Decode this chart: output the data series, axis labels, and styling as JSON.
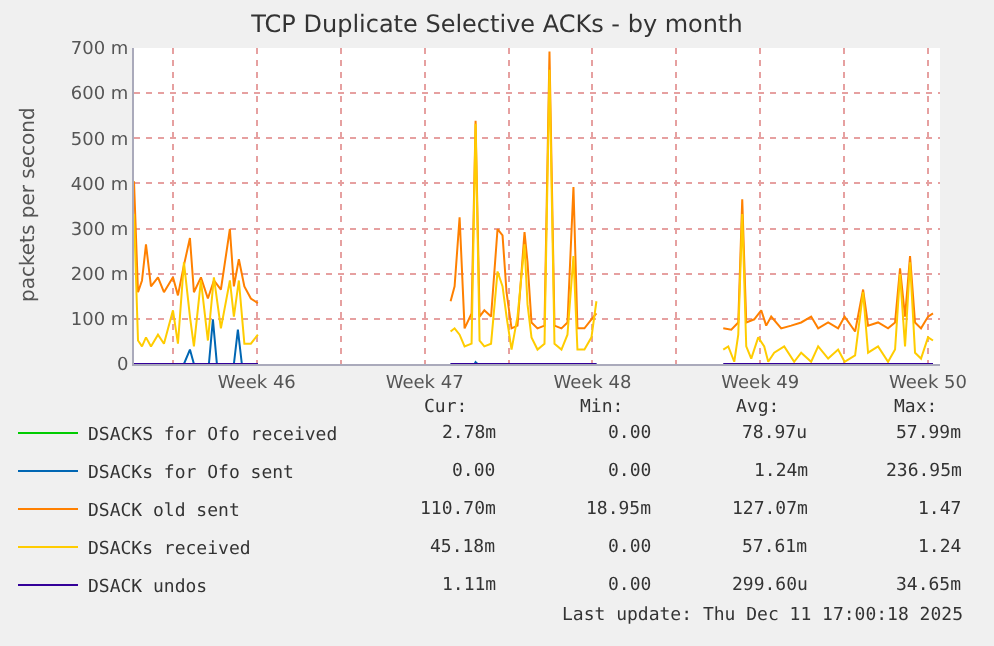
{
  "chart_data": {
    "type": "line",
    "title": "TCP Duplicate Selective ACKs - by month",
    "ylabel": "packets per second",
    "xlim": [
      "2025-11-08T09:00",
      "2025-12-12T00:00"
    ],
    "ylim": [
      0,
      700
    ],
    "xticks": [
      {
        "value": "2025-11-10",
        "label": null
      },
      {
        "value": "2025-11-13T12:00",
        "label": "Week 46"
      },
      {
        "value": "2025-11-17",
        "label": null
      },
      {
        "value": "2025-11-20T12:00",
        "label": "Week 47"
      },
      {
        "value": "2025-11-24",
        "label": null
      },
      {
        "value": "2025-11-27T12:00",
        "label": "Week 48"
      },
      {
        "value": "2025-12-01",
        "label": null
      },
      {
        "value": "2025-12-04T12:00",
        "label": "Week 49"
      },
      {
        "value": "2025-12-08",
        "label": null
      },
      {
        "value": "2025-12-11T12:00",
        "label": "Week 50"
      }
    ],
    "yticks": [
      0,
      {
        "value": 100,
        "label": "100 m"
      },
      {
        "value": 200,
        "label": "200 m"
      },
      {
        "value": 300,
        "label": "300 m"
      },
      {
        "value": 400,
        "label": "400 m"
      },
      {
        "value": 500,
        "label": "500 m"
      },
      {
        "value": 600,
        "label": "600 m"
      },
      {
        "value": 700,
        "label": "700 m"
      }
    ],
    "grid": true,
    "legend": "bottom left",
    "marker": "none",
    "line_style": "solid",
    "series": [
      {
        "name": "DSACKS for Ofo received",
        "color": "#00cc00"
      },
      {
        "name": "DSACKs for Ofo sent",
        "color": "#0066b3",
        "x": [
          "2025-11-08T09:00",
          "2025-11-10T11:00",
          "2025-11-10T17:00",
          "2025-11-10T21:00",
          "2025-11-11T12:00",
          "2025-11-11T16:00",
          "2025-11-11T20:00",
          "2025-11-12T13:00",
          "2025-11-12T17:00",
          "2025-11-12T21:00",
          "2025-11-13T13:00",
          "2025-11-17T00:00",
          "2025-11-21T14:00",
          "2025-11-22T14:00",
          "2025-11-22T15:00",
          "2025-11-22T17:00",
          "2025-11-27T16:00"
        ],
        "values": [
          0,
          0,
          32,
          0,
          0,
          99,
          0,
          0,
          76,
          0,
          0,
          null,
          0,
          0,
          4,
          0,
          0
        ]
      },
      {
        "name": "DSACK old sent",
        "color": "#ff8000",
        "x": [
          "2025-11-08T09:00",
          "2025-11-08T13:00",
          "2025-11-08T17:00",
          "2025-11-08T21:00",
          "2025-11-09T02:00",
          "2025-11-09T09:00",
          "2025-11-09T15:00",
          "2025-11-10T00:00",
          "2025-11-10T05:00",
          "2025-11-10T11:00",
          "2025-11-10T17:00",
          "2025-11-10T21:00",
          "2025-11-11T04:00",
          "2025-11-11T11:00",
          "2025-11-11T17:00",
          "2025-11-12T00:00",
          "2025-11-12T09:00",
          "2025-11-12T13:00",
          "2025-11-12T18:00",
          "2025-11-12T23:30",
          "2025-11-13T06:00",
          "2025-11-13T13:00",
          "2025-11-17T00:00",
          "2025-11-21T14:00",
          "2025-11-21T18:00",
          "2025-11-21T23:00",
          "2025-11-22T04:00",
          "2025-11-22T11:00",
          "2025-11-22T15:00",
          "2025-11-22T19:00",
          "2025-11-22T23:45",
          "2025-11-23T06:30",
          "2025-11-23T13:00",
          "2025-11-23T18:00",
          "2025-11-23T22:00",
          "2025-11-24T03:00",
          "2025-11-24T09:00",
          "2025-11-24T16:00",
          "2025-11-24T19:00",
          "2025-11-24T23:00",
          "2025-11-25T05:00",
          "2025-11-25T12:00",
          "2025-11-25T17:00",
          "2025-11-25T22:00",
          "2025-11-26T05:00",
          "2025-11-26T11:00",
          "2025-11-26T17:00",
          "2025-11-26T21:00",
          "2025-11-27T04:00",
          "2025-11-27T11:00",
          "2025-11-27T16:00",
          "2025-11-30T00:00",
          "2025-12-02T23:00",
          "2025-12-03T07:00",
          "2025-12-03T14:00",
          "2025-12-03T18:00",
          "2025-12-03T22:00",
          "2025-12-04T06:00",
          "2025-12-04T13:00",
          "2025-12-04T18:00",
          "2025-12-04T23:00",
          "2025-12-05T09:00",
          "2025-12-05T19:00",
          "2025-12-06T05:00",
          "2025-12-06T15:00",
          "2025-12-06T22:00",
          "2025-12-07T08:00",
          "2025-12-07T18:00",
          "2025-12-08T00:30",
          "2025-12-08T11:00",
          "2025-12-08T19:00",
          "2025-12-09T00:00",
          "2025-12-09T10:00",
          "2025-12-09T20:00",
          "2025-12-10T03:00",
          "2025-12-10T08:00",
          "2025-12-10T13:00",
          "2025-12-10T18:00",
          "2025-12-10T23:00",
          "2025-12-11T05:00",
          "2025-12-11T12:00",
          "2025-12-11T17:00"
        ],
        "values": [
          405,
          159,
          185,
          265,
          172,
          192,
          159,
          192,
          152,
          219,
          279,
          159,
          192,
          145,
          185,
          165,
          299,
          172,
          232,
          172,
          145,
          135,
          null,
          139,
          172,
          325,
          79,
          112,
          539,
          105,
          119,
          105,
          299,
          285,
          159,
          79,
          85,
          292,
          225,
          92,
          79,
          85,
          692,
          85,
          79,
          92,
          392,
          79,
          79,
          99,
          112,
          null,
          79,
          76,
          92,
          365,
          92,
          99,
          119,
          85,
          105,
          79,
          85,
          92,
          105,
          79,
          92,
          79,
          105,
          72,
          165,
          85,
          92,
          79,
          92,
          212,
          105,
          239,
          92,
          79,
          105,
          112
        ]
      },
      {
        "name": "DSACKs received",
        "color": "#ffcc00",
        "x": [
          "2025-11-08T09:00",
          "2025-11-08T13:00",
          "2025-11-08T17:00",
          "2025-11-08T21:00",
          "2025-11-09T02:00",
          "2025-11-09T09:00",
          "2025-11-09T15:00",
          "2025-11-10T00:00",
          "2025-11-10T05:00",
          "2025-11-10T11:00",
          "2025-11-10T17:00",
          "2025-11-10T21:00",
          "2025-11-11T04:00",
          "2025-11-11T11:00",
          "2025-11-11T17:00",
          "2025-11-12T00:00",
          "2025-11-12T09:00",
          "2025-11-12T13:00",
          "2025-11-12T18:00",
          "2025-11-12T23:30",
          "2025-11-13T06:00",
          "2025-11-13T13:00",
          "2025-11-17T00:00",
          "2025-11-21T14:00",
          "2025-11-21T18:00",
          "2025-11-21T23:00",
          "2025-11-22T04:00",
          "2025-11-22T11:00",
          "2025-11-22T15:00",
          "2025-11-22T19:00",
          "2025-11-22T23:45",
          "2025-11-23T06:30",
          "2025-11-23T13:00",
          "2025-11-23T18:00",
          "2025-11-23T22:00",
          "2025-11-24T03:00",
          "2025-11-24T09:00",
          "2025-11-24T16:00",
          "2025-11-24T19:00",
          "2025-11-24T23:00",
          "2025-11-25T05:00",
          "2025-11-25T12:00",
          "2025-11-25T17:00",
          "2025-11-25T22:00",
          "2025-11-26T05:00",
          "2025-11-26T11:00",
          "2025-11-26T17:00",
          "2025-11-26T21:00",
          "2025-11-27T04:00",
          "2025-11-27T11:00",
          "2025-11-27T16:00",
          "2025-11-30T00:00",
          "2025-12-02T23:00",
          "2025-12-03T04:00",
          "2025-12-03T10:00",
          "2025-12-03T14:00",
          "2025-12-03T18:00",
          "2025-12-03T22:00",
          "2025-12-04T03:00",
          "2025-12-04T10:00",
          "2025-12-04T16:00",
          "2025-12-04T20:00",
          "2025-12-05T02:00",
          "2025-12-05T12:00",
          "2025-12-05T22:00",
          "2025-12-06T05:00",
          "2025-12-06T15:00",
          "2025-12-06T22:00",
          "2025-12-07T08:00",
          "2025-12-07T18:00",
          "2025-12-08T00:30",
          "2025-12-08T11:00",
          "2025-12-08T19:00",
          "2025-12-09T00:00",
          "2025-12-09T10:00",
          "2025-12-09T20:00",
          "2025-12-10T03:00",
          "2025-12-10T08:00",
          "2025-12-10T13:00",
          "2025-12-10T18:00",
          "2025-12-10T23:00",
          "2025-12-11T05:00",
          "2025-12-11T12:00",
          "2025-12-11T17:00"
        ],
        "values": [
          332,
          52,
          39,
          59,
          39,
          65,
          45,
          119,
          45,
          225,
          105,
          39,
          185,
          52,
          192,
          79,
          185,
          105,
          185,
          45,
          45,
          65,
          null,
          72,
          79,
          65,
          39,
          45,
          532,
          52,
          39,
          45,
          205,
          172,
          105,
          32,
          105,
          265,
          132,
          59,
          32,
          45,
          652,
          45,
          32,
          65,
          239,
          32,
          32,
          59,
          139,
          null,
          32,
          39,
          5,
          65,
          332,
          39,
          12,
          59,
          39,
          5,
          25,
          39,
          5,
          25,
          5,
          39,
          12,
          32,
          5,
          19,
          159,
          25,
          39,
          5,
          32,
          199,
          39,
          225,
          25,
          12,
          59,
          52
        ]
      },
      {
        "name": "DSACK undos",
        "color": "#330099",
        "x": [
          "2025-11-08T09:00",
          "2025-11-13T13:00",
          "2025-11-17T00:00",
          "2025-11-21T14:00",
          "2025-11-27T16:00",
          "2025-11-30T00:00",
          "2025-12-02T23:00",
          "2025-12-11T17:00"
        ],
        "values": [
          0,
          0,
          null,
          0,
          0,
          null,
          0,
          0
        ]
      }
    ],
    "annotations": [
      "Cur:",
      "Min:",
      "Avg:",
      "Max:",
      "2.78m",
      "0.00",
      "78.97u",
      "57.99m",
      "0.00",
      "0.00",
      "1.24m",
      "236.95m",
      "110.70m",
      "18.95m",
      "127.07m",
      "1.47",
      "45.18m",
      "0.00",
      "57.61m",
      "1.24",
      "1.11m",
      "0.00",
      "299.60u",
      "34.65m",
      "Last update: Thu Dec 11 17:00:18 2025"
    ]
  }
}
